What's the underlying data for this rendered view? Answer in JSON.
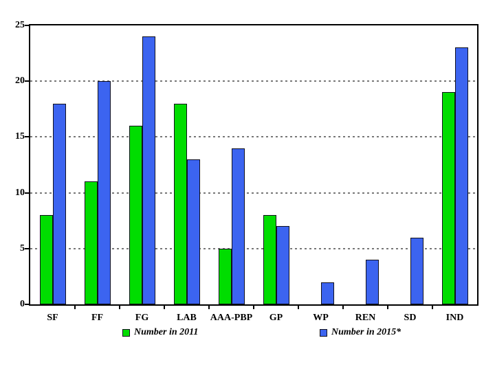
{
  "chart_data": {
    "type": "bar",
    "title": "",
    "xlabel": "",
    "ylabel": "",
    "categories": [
      "SF",
      "FF",
      "FG",
      "LAB",
      "AAA-PBP",
      "GP",
      "WP",
      "REN",
      "SD",
      "IND"
    ],
    "series": [
      {
        "name": "Number in 2011",
        "color": "#00dd00",
        "values": [
          8,
          11,
          16,
          18,
          5,
          8,
          0,
          0,
          0,
          19
        ]
      },
      {
        "name": "Number in 2015*",
        "color": "#3c64f0",
        "values": [
          18,
          20,
          24,
          13,
          14,
          7,
          2,
          4,
          6,
          23
        ]
      }
    ],
    "ylim": [
      0,
      25
    ],
    "yticks": [
      0,
      5,
      10,
      15,
      20,
      25
    ],
    "gridlines": [
      5,
      10,
      15,
      20
    ],
    "grid": true,
    "legend_position": "bottom",
    "colors": {
      "plot_border": "#000000",
      "grid": "#777777",
      "bar_outline": "#10101c",
      "text": "#000000",
      "background": "#ffffff"
    }
  }
}
